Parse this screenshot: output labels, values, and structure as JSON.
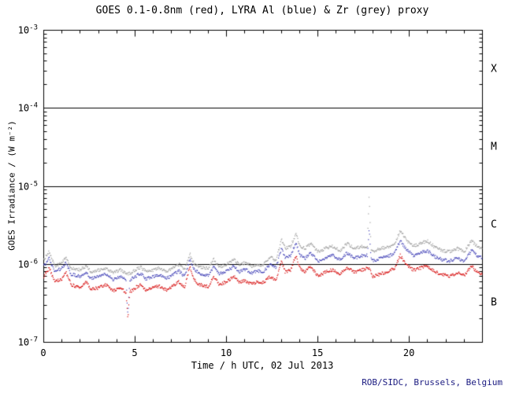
{
  "chart_data": {
    "type": "scatter",
    "title": "GOES 0.1-0.8nm (red), LYRA Al (blue) & Zr (grey) proxy",
    "xlabel": "Time / h UTC, 02 Jul 2013",
    "ylabel": "GOES Irradiance / (W m⁻²)",
    "credit": "ROB/SIDC, Brussels, Belgium",
    "credit_color": "#1a1a80",
    "axis_color": "#000000",
    "xlim": [
      0,
      24
    ],
    "ylim_exp": [
      -7,
      -3
    ],
    "x_tick_labels": [
      0,
      5,
      10,
      15,
      20
    ],
    "x_major_every": 5,
    "x_minor_step": 1,
    "y_tick_exponents": [
      -3,
      -4,
      -5,
      -6,
      -7
    ],
    "threshold_lines": [
      0.0001,
      1e-05,
      1e-06
    ],
    "flare_classes": [
      {
        "label": "X",
        "log_center": -3.5
      },
      {
        "label": "M",
        "log_center": -4.5
      },
      {
        "label": "C",
        "log_center": -5.5
      },
      {
        "label": "B",
        "log_center": -6.5
      }
    ],
    "grid": false,
    "legend": "in title",
    "series": [
      {
        "name": "LYRA Zr proxy",
        "color": "#9b9b9b",
        "points": [
          [
            0,
            1.15e-06
          ],
          [
            0.3,
            1.45e-06
          ],
          [
            0.6,
            9.5e-07
          ],
          [
            1,
            1.05e-06
          ],
          [
            1.2,
            1.25e-06
          ],
          [
            1.5,
            9e-07
          ],
          [
            2,
            8.5e-07
          ],
          [
            2.3,
            9.5e-07
          ],
          [
            2.6,
            8e-07
          ],
          [
            3,
            8.5e-07
          ],
          [
            3.4,
            9e-07
          ],
          [
            3.8,
            7.8e-07
          ],
          [
            4.2,
            8.5e-07
          ],
          [
            4.5,
            7.6e-07
          ],
          [
            4.7,
            7.6e-07
          ],
          [
            5,
            8.5e-07
          ],
          [
            5.3,
            9.2e-07
          ],
          [
            5.6,
            8e-07
          ],
          [
            6,
            8.5e-07
          ],
          [
            6.3,
            9e-07
          ],
          [
            6.7,
            8e-07
          ],
          [
            7,
            8.8e-07
          ],
          [
            7.4,
            1e-06
          ],
          [
            7.7,
            8.6e-07
          ],
          [
            8,
            1.35e-06
          ],
          [
            8.2,
            1.05e-06
          ],
          [
            8.5,
            9.2e-07
          ],
          [
            9,
            8.8e-07
          ],
          [
            9.3,
            1.15e-06
          ],
          [
            9.6,
            9.2e-07
          ],
          [
            10,
            1e-06
          ],
          [
            10.4,
            1.15e-06
          ],
          [
            10.7,
            9.8e-07
          ],
          [
            11,
            1.05e-06
          ],
          [
            11.4,
            9.5e-07
          ],
          [
            11.7,
            1e-06
          ],
          [
            12,
            9.8e-07
          ],
          [
            12.4,
            1.25e-06
          ],
          [
            12.7,
            1.1e-06
          ],
          [
            13,
            2.1e-06
          ],
          [
            13.2,
            1.6e-06
          ],
          [
            13.5,
            1.7e-06
          ],
          [
            13.8,
            2.5e-06
          ],
          [
            14,
            1.7e-06
          ],
          [
            14.3,
            1.6e-06
          ],
          [
            14.6,
            1.85e-06
          ],
          [
            15,
            1.45e-06
          ],
          [
            15.4,
            1.6e-06
          ],
          [
            15.8,
            1.7e-06
          ],
          [
            16.2,
            1.5e-06
          ],
          [
            16.6,
            1.85e-06
          ],
          [
            17,
            1.6e-06
          ],
          [
            17.4,
            1.7e-06
          ],
          [
            17.7,
            1.7e-06
          ],
          [
            17.75,
            4e-06
          ],
          [
            17.8,
            8e-06
          ],
          [
            17.85,
            3.5e-06
          ],
          [
            17.9,
            1.6e-06
          ],
          [
            18,
            1.45e-06
          ],
          [
            18.4,
            1.6e-06
          ],
          [
            18.8,
            1.65e-06
          ],
          [
            19.2,
            1.85e-06
          ],
          [
            19.5,
            2.7e-06
          ],
          [
            19.8,
            2.1e-06
          ],
          [
            20.2,
            1.7e-06
          ],
          [
            20.6,
            1.85e-06
          ],
          [
            21,
            2e-06
          ],
          [
            21.4,
            1.65e-06
          ],
          [
            21.8,
            1.5e-06
          ],
          [
            22.2,
            1.45e-06
          ],
          [
            22.6,
            1.6e-06
          ],
          [
            23,
            1.45e-06
          ],
          [
            23.4,
            2e-06
          ],
          [
            23.7,
            1.7e-06
          ],
          [
            24,
            1.6e-06
          ]
        ]
      },
      {
        "name": "LYRA Al proxy",
        "color": "#3c3cb4",
        "points": [
          [
            0,
            9.5e-07
          ],
          [
            0.3,
            1.2e-06
          ],
          [
            0.6,
            8e-07
          ],
          [
            1,
            9e-07
          ],
          [
            1.2,
            1.05e-06
          ],
          [
            1.5,
            7.5e-07
          ],
          [
            2,
            7e-07
          ],
          [
            2.3,
            8e-07
          ],
          [
            2.6,
            6.5e-07
          ],
          [
            3,
            7e-07
          ],
          [
            3.4,
            7.5e-07
          ],
          [
            3.8,
            6.4e-07
          ],
          [
            4.2,
            7e-07
          ],
          [
            4.5,
            6.2e-07
          ],
          [
            4.6,
            2.2e-07
          ],
          [
            4.7,
            6.2e-07
          ],
          [
            5,
            7e-07
          ],
          [
            5.3,
            7.6e-07
          ],
          [
            5.6,
            6.5e-07
          ],
          [
            6,
            7e-07
          ],
          [
            6.3,
            7.4e-07
          ],
          [
            6.7,
            6.6e-07
          ],
          [
            7,
            7.2e-07
          ],
          [
            7.4,
            8.2e-07
          ],
          [
            7.7,
            7e-07
          ],
          [
            8,
            1.15e-06
          ],
          [
            8.2,
            8.8e-07
          ],
          [
            8.5,
            7.6e-07
          ],
          [
            9,
            7.2e-07
          ],
          [
            9.3,
            9.5e-07
          ],
          [
            9.6,
            7.6e-07
          ],
          [
            10,
            8.2e-07
          ],
          [
            10.4,
            9.5e-07
          ],
          [
            10.7,
            8e-07
          ],
          [
            11,
            8.6e-07
          ],
          [
            11.4,
            7.8e-07
          ],
          [
            11.7,
            8.2e-07
          ],
          [
            12,
            8e-07
          ],
          [
            12.4,
            1e-06
          ],
          [
            12.7,
            9e-07
          ],
          [
            13,
            1.6e-06
          ],
          [
            13.2,
            1.2e-06
          ],
          [
            13.5,
            1.3e-06
          ],
          [
            13.8,
            1.9e-06
          ],
          [
            14,
            1.3e-06
          ],
          [
            14.3,
            1.2e-06
          ],
          [
            14.6,
            1.4e-06
          ],
          [
            15,
            1.1e-06
          ],
          [
            15.4,
            1.2e-06
          ],
          [
            15.8,
            1.3e-06
          ],
          [
            16.2,
            1.15e-06
          ],
          [
            16.6,
            1.4e-06
          ],
          [
            17,
            1.2e-06
          ],
          [
            17.4,
            1.3e-06
          ],
          [
            17.7,
            1.3e-06
          ],
          [
            17.8,
            3e-06
          ],
          [
            17.9,
            1.2e-06
          ],
          [
            18,
            1.1e-06
          ],
          [
            18.4,
            1.2e-06
          ],
          [
            18.8,
            1.25e-06
          ],
          [
            19.2,
            1.4e-06
          ],
          [
            19.5,
            2e-06
          ],
          [
            19.8,
            1.6e-06
          ],
          [
            20.2,
            1.3e-06
          ],
          [
            20.6,
            1.4e-06
          ],
          [
            21,
            1.5e-06
          ],
          [
            21.4,
            1.25e-06
          ],
          [
            21.8,
            1.15e-06
          ],
          [
            22.2,
            1.1e-06
          ],
          [
            22.6,
            1.2e-06
          ],
          [
            23,
            1.1e-06
          ],
          [
            23.4,
            1.5e-06
          ],
          [
            23.7,
            1.3e-06
          ],
          [
            24,
            1.2e-06
          ]
        ]
      },
      {
        "name": "GOES 0.1-0.8nm",
        "color": "#d40000",
        "points": [
          [
            0,
            7e-07
          ],
          [
            0.3,
            9e-07
          ],
          [
            0.6,
            6e-07
          ],
          [
            1,
            6.5e-07
          ],
          [
            1.2,
            8e-07
          ],
          [
            1.5,
            5.5e-07
          ],
          [
            2,
            5e-07
          ],
          [
            2.3,
            6e-07
          ],
          [
            2.6,
            4.8e-07
          ],
          [
            3,
            5e-07
          ],
          [
            3.4,
            5.5e-07
          ],
          [
            3.8,
            4.6e-07
          ],
          [
            4.2,
            5e-07
          ],
          [
            4.5,
            4.4e-07
          ],
          [
            4.6,
            2e-07
          ],
          [
            4.7,
            4.4e-07
          ],
          [
            5,
            5e-07
          ],
          [
            5.3,
            5.5e-07
          ],
          [
            5.6,
            4.6e-07
          ],
          [
            6,
            5e-07
          ],
          [
            6.3,
            5.3e-07
          ],
          [
            6.7,
            4.7e-07
          ],
          [
            7,
            5.2e-07
          ],
          [
            7.4,
            6e-07
          ],
          [
            7.7,
            5e-07
          ],
          [
            8,
            9.5e-07
          ],
          [
            8.2,
            6.5e-07
          ],
          [
            8.5,
            5.5e-07
          ],
          [
            9,
            5.2e-07
          ],
          [
            9.3,
            7e-07
          ],
          [
            9.6,
            5.5e-07
          ],
          [
            10,
            6e-07
          ],
          [
            10.4,
            7e-07
          ],
          [
            10.7,
            5.8e-07
          ],
          [
            11,
            6.2e-07
          ],
          [
            11.4,
            5.6e-07
          ],
          [
            11.7,
            6e-07
          ],
          [
            12,
            5.8e-07
          ],
          [
            12.4,
            7e-07
          ],
          [
            12.7,
            6.2e-07
          ],
          [
            13,
            1.1e-06
          ],
          [
            13.2,
            8e-07
          ],
          [
            13.5,
            8.5e-07
          ],
          [
            13.8,
            1.3e-06
          ],
          [
            14,
            9e-07
          ],
          [
            14.3,
            8e-07
          ],
          [
            14.6,
            9.5e-07
          ],
          [
            15,
            7e-07
          ],
          [
            15.4,
            8e-07
          ],
          [
            15.8,
            8.5e-07
          ],
          [
            16.2,
            7.5e-07
          ],
          [
            16.6,
            9e-07
          ],
          [
            17,
            8e-07
          ],
          [
            17.4,
            8.5e-07
          ],
          [
            17.8,
            9e-07
          ],
          [
            18,
            7e-07
          ],
          [
            18.4,
            7.5e-07
          ],
          [
            18.8,
            8e-07
          ],
          [
            19.2,
            9e-07
          ],
          [
            19.5,
            1.3e-06
          ],
          [
            19.8,
            1e-06
          ],
          [
            20.2,
            8.5e-07
          ],
          [
            20.6,
            9e-07
          ],
          [
            21,
            9.5e-07
          ],
          [
            21.4,
            8e-07
          ],
          [
            21.8,
            7.5e-07
          ],
          [
            22.2,
            7e-07
          ],
          [
            22.6,
            7.8e-07
          ],
          [
            23,
            7.2e-07
          ],
          [
            23.4,
            9.5e-07
          ],
          [
            23.7,
            8e-07
          ],
          [
            24,
            7.5e-07
          ]
        ]
      }
    ]
  }
}
